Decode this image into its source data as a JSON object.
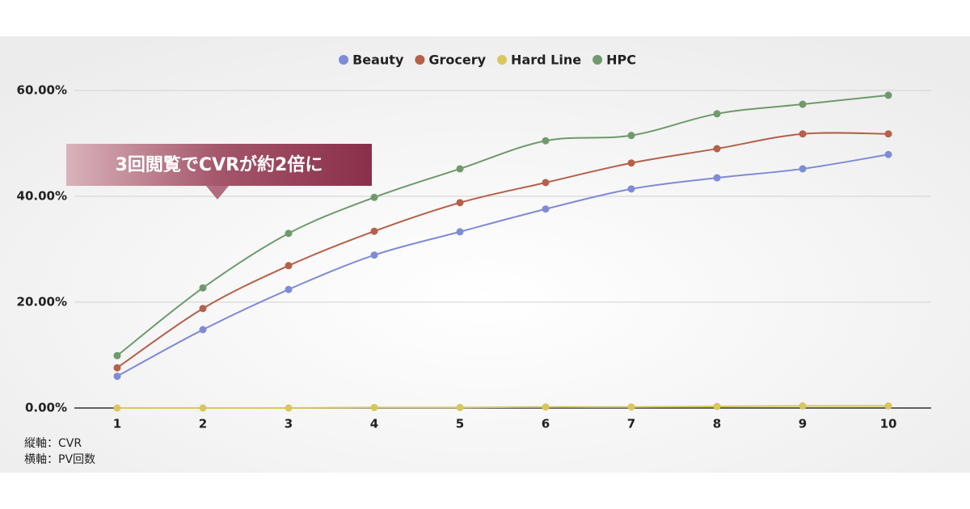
{
  "chart_data": {
    "type": "line",
    "categories": [
      "1",
      "2",
      "3",
      "4",
      "5",
      "6",
      "7",
      "8",
      "9",
      "10"
    ],
    "series": [
      {
        "name": "Beauty",
        "color": "#7f8bd6",
        "values": [
          6.0,
          14.8,
          22.4,
          28.9,
          33.3,
          37.6,
          41.4,
          43.5,
          45.2,
          47.9
        ]
      },
      {
        "name": "Grocery",
        "color": "#b5604a",
        "values": [
          7.6,
          18.8,
          26.9,
          33.4,
          38.8,
          42.6,
          46.3,
          49.0,
          51.8,
          51.8
        ]
      },
      {
        "name": "Hard Line",
        "color": "#d9c65e",
        "values": [
          0.0,
          0.0,
          0.0,
          0.1,
          0.1,
          0.2,
          0.2,
          0.3,
          0.4,
          0.4
        ]
      },
      {
        "name": "HPC",
        "color": "#6e9a6c",
        "values": [
          9.9,
          22.7,
          33.0,
          39.8,
          45.2,
          50.5,
          51.5,
          55.6,
          57.4,
          59.1
        ]
      }
    ],
    "ylim": [
      0,
      60
    ],
    "yticks": [
      {
        "value": 0,
        "label": "0.00%"
      },
      {
        "value": 20,
        "label": "20.00%"
      },
      {
        "value": 40,
        "label": "40.00%"
      },
      {
        "value": 60,
        "label": "60.00%"
      }
    ],
    "grid": true,
    "legend": "top",
    "annotation": "3回閲覧でCVRが約2倍に",
    "notes": [
      "縦軸：CVR",
      "横軸：PV回数"
    ]
  }
}
